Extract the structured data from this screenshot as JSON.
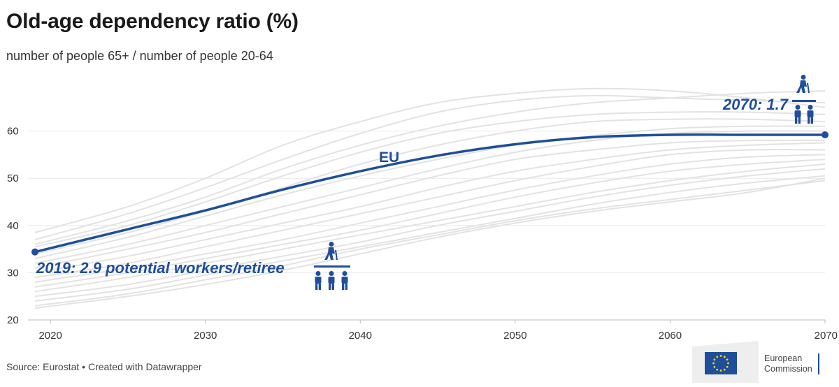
{
  "title": "Old-age dependency ratio (%)",
  "subtitle": "number of people 65+ / number of people 20-64",
  "source": "Source: Eurostat • Created with Datawrapper",
  "logo": {
    "line1": "European",
    "line2": "Commission"
  },
  "colors": {
    "eu_line": "#1f4e9a",
    "country_lines": "#e2e2e2",
    "grid": "#e9e9e9"
  },
  "chart_data": {
    "type": "line",
    "title": "Old-age dependency ratio (%)",
    "subtitle": "number of people 65+ / number of people 20-64",
    "xlim": [
      2019,
      2070
    ],
    "ylim": [
      20,
      70
    ],
    "x_ticks": [
      2020,
      2030,
      2040,
      2050,
      2060,
      2070
    ],
    "y_ticks": [
      20,
      30,
      40,
      50,
      60
    ],
    "grid": "horizontal",
    "x": [
      2019,
      2025,
      2030,
      2035,
      2040,
      2045,
      2050,
      2055,
      2060,
      2065,
      2070
    ],
    "series": [
      {
        "name": "EU",
        "highlight": true,
        "values": [
          34.4,
          39.2,
          43.2,
          47.6,
          51.5,
          54.8,
          57.2,
          58.7,
          59.2,
          59.2,
          59.2
        ]
      },
      {
        "values": [
          38.5,
          44,
          50,
          57,
          62,
          66,
          68,
          69,
          68.5,
          67,
          65
        ]
      },
      {
        "values": [
          37,
          42.5,
          48,
          54,
          59.5,
          64,
          66.5,
          67.5,
          67,
          66.5,
          66
        ]
      },
      {
        "values": [
          36,
          41,
          46,
          52,
          57,
          61,
          64,
          66,
          67,
          68,
          68.5
        ]
      },
      {
        "values": [
          35.5,
          40,
          45,
          50.5,
          55.5,
          59.5,
          62,
          63.5,
          64,
          64,
          63.5
        ]
      },
      {
        "values": [
          34,
          38.5,
          43,
          48,
          53,
          57,
          60,
          62,
          62.5,
          62.5,
          62
        ]
      },
      {
        "values": [
          33,
          37.5,
          42,
          46.5,
          50.5,
          54,
          57,
          59,
          60.5,
          61,
          61
        ]
      },
      {
        "values": [
          32,
          36,
          40,
          44,
          48,
          52,
          55.5,
          58,
          59.5,
          60,
          60
        ]
      },
      {
        "values": [
          31,
          35,
          38.5,
          42.5,
          46.5,
          50.5,
          54,
          56,
          57.5,
          58,
          58
        ]
      },
      {
        "values": [
          30,
          33.5,
          37,
          40.5,
          44,
          48,
          51.5,
          54,
          56,
          57,
          57.5
        ]
      },
      {
        "values": [
          29,
          32,
          35.5,
          39,
          42.5,
          46,
          49.5,
          52.5,
          55,
          56,
          56
        ]
      },
      {
        "values": [
          28,
          31,
          34,
          37,
          40.5,
          44,
          47.5,
          50.5,
          53,
          54.5,
          55
        ]
      },
      {
        "values": [
          27,
          30,
          33,
          36,
          39,
          42.5,
          46,
          49,
          51.5,
          53,
          54
        ]
      },
      {
        "values": [
          26,
          29,
          32,
          35,
          38,
          41,
          44,
          47,
          49.5,
          51.5,
          53
        ]
      },
      {
        "values": [
          25,
          27.5,
          30.5,
          33.5,
          36.5,
          40,
          43,
          46,
          48.5,
          50.5,
          52
        ]
      },
      {
        "values": [
          24,
          26.5,
          29.5,
          32.5,
          35.5,
          38.5,
          41.5,
          44.5,
          47,
          49,
          50.5
        ]
      },
      {
        "values": [
          23,
          25.5,
          28.5,
          31.5,
          35,
          38,
          41,
          43.5,
          45.5,
          47.5,
          49.5
        ]
      },
      {
        "values": [
          22.5,
          25,
          27.5,
          30.5,
          34,
          37.5,
          40.5,
          43,
          45,
          47,
          50
        ]
      }
    ],
    "annotations": [
      {
        "text": "2019: 2.9 potential workers/retiree",
        "x": 2019,
        "y": 34.4
      },
      {
        "text": "2070: 1.7",
        "x": 2070,
        "y": 59.2
      },
      {
        "text": "EU",
        "x": 2041,
        "y": 53.5
      }
    ]
  }
}
